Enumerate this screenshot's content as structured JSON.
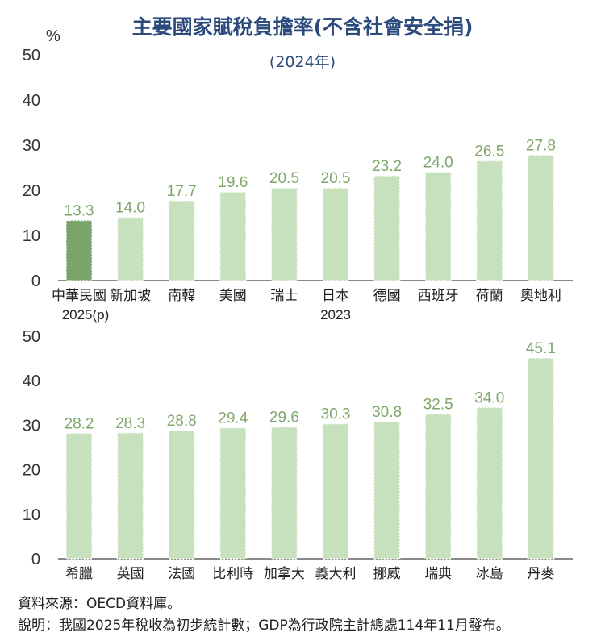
{
  "title": "主要國家賦稅負擔率(不含社會安全捐)",
  "subtitle": "(2024年)",
  "unit": "%",
  "colors": {
    "highlight": "#7ba46a",
    "bar": "#c7e0bd",
    "value_label": "#7ea76b",
    "axis": "#333333"
  },
  "chart_data": [
    {
      "type": "bar",
      "categories": [
        "中華民國",
        "新加坡",
        "南韓",
        "美國",
        "瑞士",
        "日本",
        "德國",
        "西班牙",
        "荷蘭",
        "奧地利"
      ],
      "category_notes": [
        "2025(p)",
        "",
        "",
        "",
        "",
        "2023",
        "",
        "",
        "",
        ""
      ],
      "values": [
        13.3,
        14.0,
        17.7,
        19.6,
        20.5,
        20.5,
        23.2,
        24.0,
        26.5,
        27.8
      ],
      "value_labels": [
        "13.3",
        "14.0",
        "17.7",
        "19.6",
        "20.5",
        "20.5",
        "23.2",
        "24.0",
        "26.5",
        "27.8"
      ],
      "highlight_index": 0,
      "ylim": [
        0,
        50
      ],
      "yticks": [
        "0",
        "10",
        "20",
        "30",
        "40",
        "50"
      ]
    },
    {
      "type": "bar",
      "categories": [
        "希臘",
        "英國",
        "法國",
        "比利時",
        "加拿大",
        "義大利",
        "挪威",
        "瑞典",
        "冰島",
        "丹麥"
      ],
      "values": [
        28.2,
        28.3,
        28.8,
        29.4,
        29.6,
        30.3,
        30.8,
        32.5,
        34.0,
        45.1
      ],
      "value_labels": [
        "28.2",
        "28.3",
        "28.8",
        "29.4",
        "29.6",
        "30.3",
        "30.8",
        "32.5",
        "34.0",
        "45.1"
      ],
      "ylim": [
        0,
        50
      ],
      "yticks": [
        "0",
        "10",
        "20",
        "30",
        "40",
        "50"
      ]
    }
  ],
  "notes": {
    "source": "資料來源：OECD資料庫。",
    "explanation": "說明：我國2025年稅收為初步統計數；GDP為行政院主計總處114年11月發布。"
  }
}
